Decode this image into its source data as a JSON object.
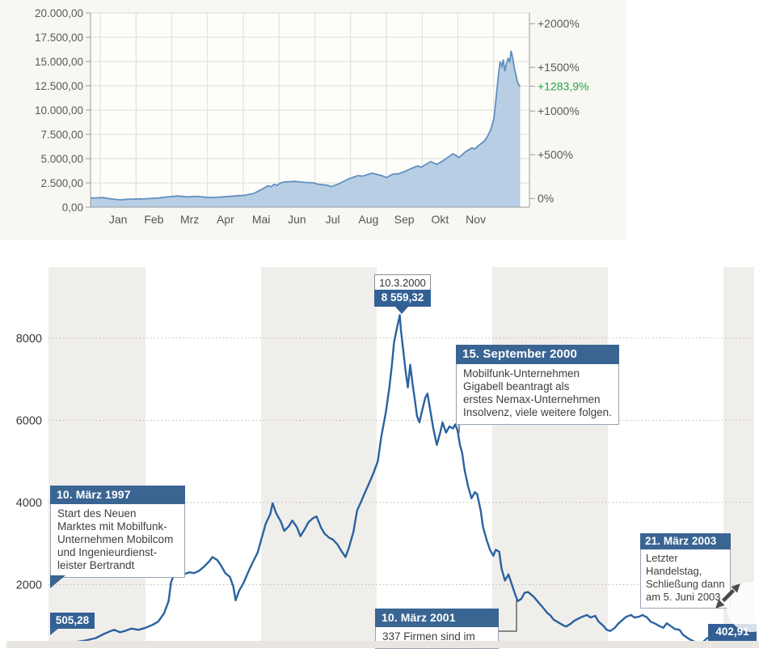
{
  "chart_data": [
    {
      "id": "price-area-chart",
      "type": "area",
      "title": "",
      "months": [
        "Jan",
        "Feb",
        "Mrz",
        "Apr",
        "Mai",
        "Jun",
        "Jul",
        "Aug",
        "Sep",
        "Okt",
        "Nov"
      ],
      "y_tick_labels": [
        "20.000,00",
        "17.500,00",
        "15.000,00",
        "12.500,00",
        "10.000,00",
        "7.500,00",
        "5.000,00",
        "2.500,00",
        "0,00"
      ],
      "y_range": [
        0,
        20000
      ],
      "pct_ticks": [
        {
          "label": "+2000%",
          "pct": 2000
        },
        {
          "label": "+1500%",
          "pct": 1500
        },
        {
          "label": "+1000%",
          "pct": 1000
        },
        {
          "label": "+500%",
          "pct": 500
        },
        {
          "label": "0%",
          "pct": 0
        }
      ],
      "current_change": {
        "label": "+1283,9%",
        "pct": 1283.9
      },
      "base_value": 900,
      "series": [
        [
          -0.27,
          950
        ],
        [
          -0.09,
          960
        ],
        [
          0.09,
          985
        ],
        [
          0.24,
          880
        ],
        [
          0.46,
          780
        ],
        [
          0.57,
          760
        ],
        [
          0.75,
          810
        ],
        [
          0.93,
          830
        ],
        [
          1.1,
          850
        ],
        [
          1.28,
          870
        ],
        [
          1.46,
          905
        ],
        [
          1.64,
          950
        ],
        [
          1.81,
          1030
        ],
        [
          1.99,
          1090
        ],
        [
          2.17,
          1150
        ],
        [
          2.43,
          1050
        ],
        [
          2.7,
          1120
        ],
        [
          2.96,
          1020
        ],
        [
          3.23,
          1010
        ],
        [
          3.49,
          1070
        ],
        [
          3.76,
          1150
        ],
        [
          4.02,
          1220
        ],
        [
          4.29,
          1400
        ],
        [
          4.55,
          1900
        ],
        [
          4.69,
          2200
        ],
        [
          4.77,
          2100
        ],
        [
          4.86,
          2350
        ],
        [
          4.95,
          2250
        ],
        [
          5.04,
          2500
        ],
        [
          5.17,
          2600
        ],
        [
          5.44,
          2650
        ],
        [
          5.7,
          2550
        ],
        [
          5.97,
          2500
        ],
        [
          6.1,
          2350
        ],
        [
          6.37,
          2250
        ],
        [
          6.45,
          2100
        ],
        [
          6.67,
          2400
        ],
        [
          6.94,
          2900
        ],
        [
          7.2,
          3250
        ],
        [
          7.34,
          3200
        ],
        [
          7.47,
          3350
        ],
        [
          7.6,
          3500
        ],
        [
          7.87,
          3250
        ],
        [
          8.0,
          3050
        ],
        [
          8.18,
          3400
        ],
        [
          8.35,
          3450
        ],
        [
          8.53,
          3700
        ],
        [
          8.71,
          4000
        ],
        [
          8.88,
          4250
        ],
        [
          8.97,
          4100
        ],
        [
          9.06,
          4300
        ],
        [
          9.24,
          4700
        ],
        [
          9.41,
          4400
        ],
        [
          9.59,
          4800
        ],
        [
          9.77,
          5250
        ],
        [
          9.86,
          5500
        ],
        [
          9.94,
          5350
        ],
        [
          10.03,
          5100
        ],
        [
          10.21,
          5700
        ],
        [
          10.39,
          6100
        ],
        [
          10.47,
          6000
        ],
        [
          10.56,
          6300
        ],
        [
          10.74,
          6800
        ],
        [
          10.83,
          7300
        ],
        [
          10.92,
          8000
        ],
        [
          11.01,
          9200
        ],
        [
          11.09,
          12000
        ],
        [
          11.14,
          13800
        ],
        [
          11.18,
          15000
        ],
        [
          11.23,
          14500
        ],
        [
          11.27,
          15200
        ],
        [
          11.31,
          14000
        ],
        [
          11.36,
          14800
        ],
        [
          11.4,
          15300
        ],
        [
          11.45,
          15000
        ],
        [
          11.49,
          16100
        ],
        [
          11.54,
          15200
        ],
        [
          11.58,
          14300
        ],
        [
          11.63,
          13500
        ],
        [
          11.67,
          12800
        ],
        [
          11.74,
          12400
        ]
      ],
      "colors": {
        "line": "#6090c0",
        "fill": "#b4cbe3",
        "grid": "#dcdcdc",
        "axis": "#9a9a9a",
        "bg": "#f8f7f2",
        "plot_bg": "#fdfdfa",
        "label": "#595959",
        "green": "#1fa34a"
      }
    },
    {
      "id": "nemax-index-chart",
      "type": "line",
      "y_tick_labels": [
        "8000",
        "6000",
        "4000",
        "2000"
      ],
      "y_ticks": [
        8000,
        6000,
        4000,
        2000
      ],
      "x_range": [
        1997.15,
        2003.27
      ],
      "year_bands": [
        [
          1997.15,
          1998
        ],
        [
          1999,
          2000
        ],
        [
          2001,
          2002
        ],
        [
          2003,
          2003.27
        ]
      ],
      "start_label": "505,28",
      "end_label": "402,91",
      "peak_callout": {
        "date": "10.3.2000",
        "value": "8 559,32"
      },
      "events": [
        {
          "title": "10. März 1997",
          "lines": [
            "Start des Neuen",
            "Marktes mit Mobilfunk-",
            "Unternehmen Mobilcom",
            "und Ingenieurdienst-",
            "leister Bertrandt"
          ]
        },
        {
          "title": "15. September 2000",
          "lines": [
            "Mobilfunk-Unternehmen",
            "Gigabell beantragt als",
            "erstes Nemax-Unternehmen",
            "Insolvenz, viele weitere folgen."
          ]
        },
        {
          "title": "10. März 2001",
          "lines": [
            "337 Firmen sind im"
          ]
        },
        {
          "title": "21. März 2003",
          "lines": [
            "Letzter Handelstag,",
            "Schließung dann",
            "am 5. Juni 2003"
          ]
        }
      ],
      "series": [
        [
          1997.17,
          505
        ],
        [
          1997.27,
          545
        ],
        [
          1997.37,
          590
        ],
        [
          1997.48,
          640
        ],
        [
          1997.57,
          700
        ],
        [
          1997.64,
          800
        ],
        [
          1997.69,
          860
        ],
        [
          1997.73,
          900
        ],
        [
          1997.78,
          840
        ],
        [
          1997.83,
          880
        ],
        [
          1997.88,
          930
        ],
        [
          1997.94,
          900
        ],
        [
          1998.0,
          950
        ],
        [
          1998.06,
          1020
        ],
        [
          1998.11,
          1100
        ],
        [
          1998.16,
          1300
        ],
        [
          1998.2,
          1600
        ],
        [
          1998.22,
          2050
        ],
        [
          1998.25,
          2280
        ],
        [
          1998.29,
          2320
        ],
        [
          1998.34,
          2260
        ],
        [
          1998.38,
          2300
        ],
        [
          1998.42,
          2280
        ],
        [
          1998.46,
          2330
        ],
        [
          1998.5,
          2420
        ],
        [
          1998.55,
          2560
        ],
        [
          1998.58,
          2670
        ],
        [
          1998.62,
          2600
        ],
        [
          1998.65,
          2480
        ],
        [
          1998.69,
          2280
        ],
        [
          1998.73,
          2190
        ],
        [
          1998.76,
          1950
        ],
        [
          1998.78,
          1620
        ],
        [
          1998.81,
          1850
        ],
        [
          1998.85,
          2050
        ],
        [
          1998.88,
          2250
        ],
        [
          1998.92,
          2500
        ],
        [
          1998.97,
          2780
        ],
        [
          1999.01,
          3180
        ],
        [
          1999.04,
          3480
        ],
        [
          1999.08,
          3720
        ],
        [
          1999.1,
          3980
        ],
        [
          1999.13,
          3740
        ],
        [
          1999.17,
          3540
        ],
        [
          1999.2,
          3310
        ],
        [
          1999.24,
          3420
        ],
        [
          1999.27,
          3560
        ],
        [
          1999.31,
          3400
        ],
        [
          1999.34,
          3180
        ],
        [
          1999.38,
          3360
        ],
        [
          1999.41,
          3520
        ],
        [
          1999.45,
          3620
        ],
        [
          1999.48,
          3660
        ],
        [
          1999.52,
          3380
        ],
        [
          1999.55,
          3240
        ],
        [
          1999.59,
          3140
        ],
        [
          1999.62,
          3100
        ],
        [
          1999.66,
          2980
        ],
        [
          1999.69,
          2840
        ],
        [
          1999.73,
          2670
        ],
        [
          1999.76,
          2900
        ],
        [
          1999.8,
          3300
        ],
        [
          1999.83,
          3800
        ],
        [
          1999.87,
          4050
        ],
        [
          1999.9,
          4250
        ],
        [
          1999.94,
          4500
        ],
        [
          1999.97,
          4700
        ],
        [
          2000.01,
          5000
        ],
        [
          2000.04,
          5600
        ],
        [
          2000.08,
          6200
        ],
        [
          2000.11,
          6800
        ],
        [
          2000.13,
          7300
        ],
        [
          2000.15,
          7900
        ],
        [
          2000.18,
          8300
        ],
        [
          2000.2,
          8559
        ],
        [
          2000.21,
          8200
        ],
        [
          2000.23,
          7700
        ],
        [
          2000.25,
          7200
        ],
        [
          2000.27,
          6800
        ],
        [
          2000.29,
          7350
        ],
        [
          2000.31,
          6900
        ],
        [
          2000.33,
          6500
        ],
        [
          2000.35,
          6100
        ],
        [
          2000.37,
          5950
        ],
        [
          2000.39,
          6200
        ],
        [
          2000.42,
          6550
        ],
        [
          2000.44,
          6650
        ],
        [
          2000.46,
          6300
        ],
        [
          2000.49,
          5800
        ],
        [
          2000.52,
          5400
        ],
        [
          2000.55,
          5700
        ],
        [
          2000.57,
          5950
        ],
        [
          2000.6,
          5700
        ],
        [
          2000.63,
          5850
        ],
        [
          2000.66,
          5800
        ],
        [
          2000.68,
          5900
        ],
        [
          2000.7,
          5750
        ],
        [
          2000.72,
          5400
        ],
        [
          2000.74,
          5200
        ],
        [
          2000.76,
          4800
        ],
        [
          2000.79,
          4400
        ],
        [
          2000.82,
          4100
        ],
        [
          2000.85,
          4250
        ],
        [
          2000.87,
          4200
        ],
        [
          2000.9,
          3800
        ],
        [
          2000.92,
          3400
        ],
        [
          2000.95,
          3100
        ],
        [
          2000.98,
          2850
        ],
        [
          2001.01,
          2700
        ],
        [
          2001.03,
          2850
        ],
        [
          2001.06,
          2800
        ],
        [
          2001.08,
          2400
        ],
        [
          2001.11,
          2100
        ],
        [
          2001.14,
          2250
        ],
        [
          2001.17,
          2000
        ],
        [
          2001.2,
          1750
        ],
        [
          2001.22,
          1600
        ],
        [
          2001.25,
          1650
        ],
        [
          2001.28,
          1800
        ],
        [
          2001.31,
          1820
        ],
        [
          2001.34,
          1750
        ],
        [
          2001.36,
          1700
        ],
        [
          2001.39,
          1600
        ],
        [
          2001.42,
          1500
        ],
        [
          2001.45,
          1400
        ],
        [
          2001.48,
          1300
        ],
        [
          2001.5,
          1260
        ],
        [
          2001.53,
          1150
        ],
        [
          2001.56,
          1100
        ],
        [
          2001.59,
          1050
        ],
        [
          2001.62,
          1000
        ],
        [
          2001.64,
          980
        ],
        [
          2001.68,
          1050
        ],
        [
          2001.71,
          1120
        ],
        [
          2001.75,
          1180
        ],
        [
          2001.78,
          1220
        ],
        [
          2001.82,
          1260
        ],
        [
          2001.85,
          1200
        ],
        [
          2001.89,
          1240
        ],
        [
          2001.92,
          1100
        ],
        [
          2001.96,
          1000
        ],
        [
          2001.99,
          900
        ],
        [
          2002.02,
          870
        ],
        [
          2002.06,
          950
        ],
        [
          2002.09,
          1050
        ],
        [
          2002.13,
          1150
        ],
        [
          2002.16,
          1220
        ],
        [
          2002.2,
          1260
        ],
        [
          2002.23,
          1200
        ],
        [
          2002.27,
          1220
        ],
        [
          2002.3,
          1260
        ],
        [
          2002.34,
          1200
        ],
        [
          2002.37,
          1100
        ],
        [
          2002.41,
          1050
        ],
        [
          2002.44,
          1000
        ],
        [
          2002.48,
          950
        ],
        [
          2002.51,
          1060
        ],
        [
          2002.55,
          980
        ],
        [
          2002.58,
          920
        ],
        [
          2002.62,
          900
        ],
        [
          2002.65,
          780
        ],
        [
          2002.69,
          700
        ],
        [
          2002.72,
          650
        ],
        [
          2002.76,
          600
        ],
        [
          2002.79,
          560
        ],
        [
          2002.83,
          620
        ],
        [
          2002.86,
          700
        ],
        [
          2002.9,
          730
        ],
        [
          2002.93,
          650
        ],
        [
          2002.97,
          560
        ],
        [
          2003.0,
          480
        ],
        [
          2003.03,
          440
        ],
        [
          2003.07,
          420
        ],
        [
          2003.1,
          410
        ],
        [
          2003.14,
          405
        ],
        [
          2003.17,
          403
        ]
      ],
      "colors": {
        "line": "#2a62a1",
        "band": "#f0eeea",
        "grid": "#bdb8b1",
        "label": "#3a3a3a",
        "box_blue": "#3a6593",
        "value_blue": "#336094",
        "connector": "#666666",
        "arrow": "#4d4d4d"
      }
    }
  ]
}
